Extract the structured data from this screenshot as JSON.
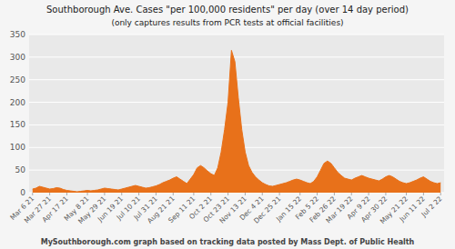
{
  "chart_data": {
    "type": "area",
    "title": "Southborough Ave. Cases \"per 100,000 residents\" per day (over 14 day period)",
    "subtitle": "(only captures results from PCR tests at official facilities)",
    "annotations": [
      "MySouthborough.com graph based on tracking data posted by Mass Dept. of Public Health"
    ],
    "color": "#e8711a",
    "grid": true,
    "ylim": [
      0,
      350
    ],
    "yticks": [
      0,
      50,
      100,
      150,
      200,
      250,
      300,
      350
    ],
    "categories": [
      "Mar 6 21",
      null,
      null,
      null,
      null,
      "Mar 27 21",
      null,
      null,
      null,
      null,
      "Apr 17 21",
      null,
      null,
      null,
      null,
      null,
      "May 8 21",
      null,
      null,
      null,
      null,
      "May 29 21",
      null,
      null,
      null,
      null,
      "Jun 19 21",
      null,
      null,
      null,
      null,
      "Jul 10 21",
      null,
      null,
      null,
      null,
      "Jul 31 21",
      null,
      null,
      null,
      null,
      "Aug 21 21",
      null,
      null,
      null,
      null,
      null,
      "Sep 11 21",
      null,
      null,
      null,
      null,
      "Oct 2 21",
      null,
      null,
      null,
      null,
      "Oct 23 21",
      null,
      null,
      null,
      null,
      "Nov 13 21",
      null,
      null,
      null,
      null,
      "Dec 4 21",
      null,
      null,
      null,
      null,
      "Dec 25 21",
      null,
      null,
      null,
      null,
      null,
      "Jan 15 22",
      null,
      null,
      null,
      null,
      "Feb 5 22",
      null,
      null,
      null,
      null,
      "Feb 26 22",
      null,
      null,
      null,
      null,
      "Mar 19 22",
      null,
      null,
      null,
      null,
      "Apr 9 22",
      null,
      null,
      null,
      null,
      "Apr 30 22",
      null,
      null,
      null,
      null,
      null,
      "May 21 22",
      null,
      null,
      null,
      null,
      "Jun 11 22",
      null,
      null,
      null,
      null,
      "Jul 2 22"
    ],
    "values": [
      8,
      10,
      14,
      12,
      10,
      8,
      9,
      11,
      10,
      7,
      5,
      4,
      3,
      2,
      3,
      4,
      5,
      4,
      5,
      6,
      8,
      10,
      9,
      8,
      7,
      6,
      8,
      10,
      12,
      14,
      16,
      14,
      12,
      10,
      11,
      13,
      15,
      18,
      22,
      25,
      28,
      32,
      35,
      30,
      25,
      20,
      30,
      40,
      55,
      60,
      55,
      48,
      42,
      38,
      55,
      90,
      140,
      200,
      315,
      290,
      210,
      140,
      90,
      60,
      45,
      35,
      28,
      22,
      18,
      15,
      14,
      16,
      18,
      20,
      22,
      25,
      28,
      30,
      28,
      25,
      22,
      20,
      25,
      35,
      50,
      65,
      70,
      65,
      55,
      45,
      38,
      32,
      30,
      28,
      32,
      35,
      38,
      35,
      32,
      30,
      28,
      26,
      30,
      35,
      38,
      35,
      30,
      25,
      22,
      20,
      22,
      25,
      28,
      32,
      35,
      30,
      25,
      22,
      20,
      22
    ]
  }
}
